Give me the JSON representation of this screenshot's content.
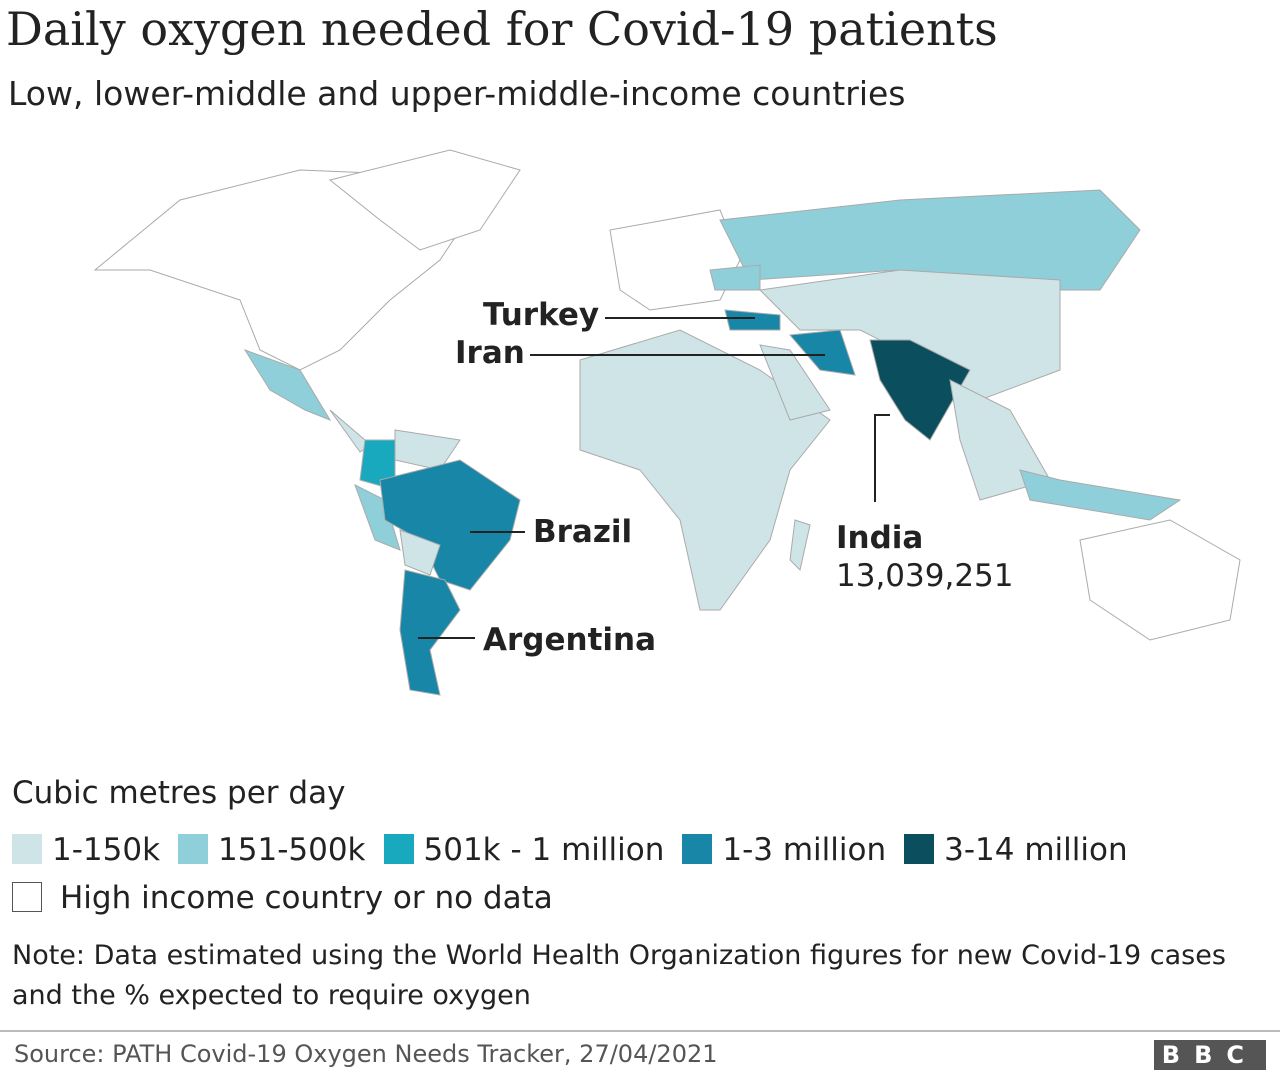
{
  "title": "Daily oxygen needed for Covid-19 patients",
  "subtitle": "Low, lower-middle and upper-middle-income countries",
  "annotations": {
    "turkey": "Turkey",
    "iran": "Iran",
    "brazil": "Brazil",
    "argentina": "Argentina",
    "india": "India",
    "india_value": "13,039,251"
  },
  "legend": {
    "title": "Cubic metres per day",
    "items": [
      {
        "label": "1-150k",
        "color": "#cfe4e7"
      },
      {
        "label": "151-500k",
        "color": "#8fcfda"
      },
      {
        "label": "501k - 1 million",
        "color": "#18a9be"
      },
      {
        "label": "1-3 million",
        "color": "#1886a6"
      },
      {
        "label": "3-14 million",
        "color": "#0b4e5e"
      }
    ],
    "no_data": "High income country or no data"
  },
  "note": "Note: Data estimated using the World Health Organization figures for new Covid-19 cases and the % expected to require oxygen",
  "source": "Source: PATH Covid-19 Oxygen Needs Tracker, 27/04/2021",
  "logo": "BBC"
}
